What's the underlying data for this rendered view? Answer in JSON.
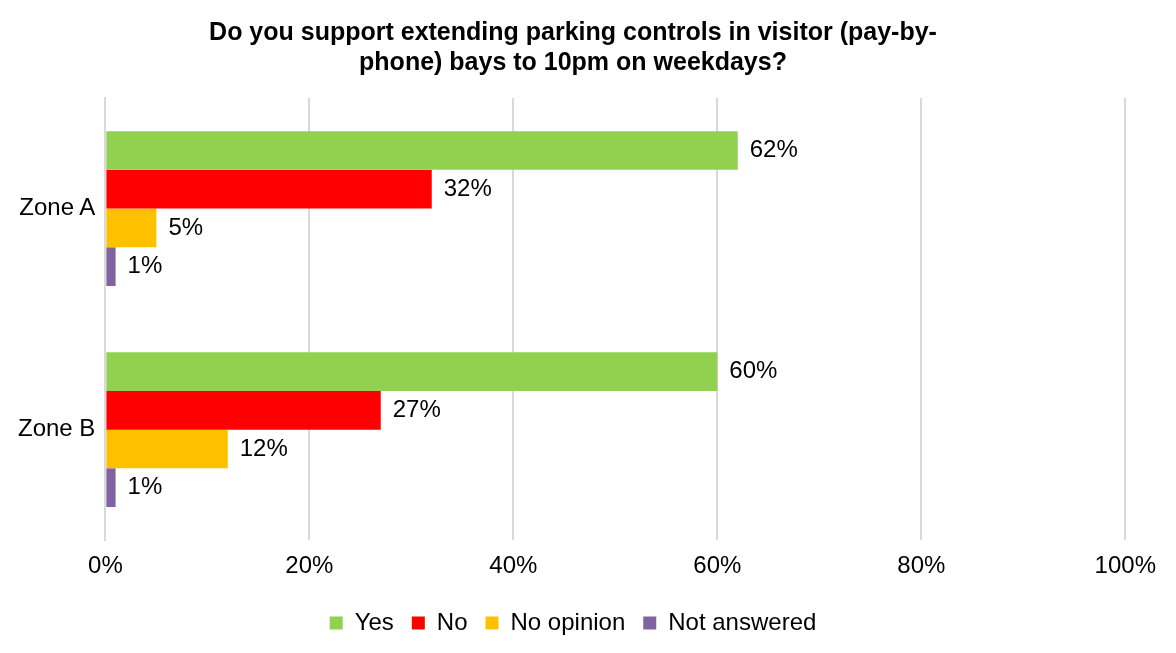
{
  "chart_data": {
    "type": "bar",
    "orientation": "horizontal",
    "title": "Do you support extending parking controls in visitor (pay-by-\nphone) bays to 10pm on weekdays?",
    "categories": [
      "Zone A",
      "Zone B"
    ],
    "series": [
      {
        "name": "Yes",
        "color": "#92d050",
        "values": [
          62,
          60
        ],
        "value_labels": [
          "62%",
          "60%"
        ]
      },
      {
        "name": "No",
        "color": "#ff0000",
        "values": [
          32,
          27
        ],
        "value_labels": [
          "32%",
          "27%"
        ]
      },
      {
        "name": "No opinion",
        "color": "#ffc000",
        "values": [
          5,
          12
        ],
        "value_labels": [
          "5%",
          "12%"
        ]
      },
      {
        "name": "Not answered",
        "color": "#8064a2",
        "values": [
          1,
          1
        ],
        "value_labels": [
          "1%",
          "1%"
        ]
      }
    ],
    "xlim": [
      0,
      100
    ],
    "xticks": [
      {
        "value": 0,
        "label": "0%"
      },
      {
        "value": 20,
        "label": "20%"
      },
      {
        "value": 40,
        "label": "40%"
      },
      {
        "value": 60,
        "label": "60%"
      },
      {
        "value": 80,
        "label": "80%"
      },
      {
        "value": 100,
        "label": "100%"
      }
    ],
    "grid": "x",
    "legend": "bottom"
  }
}
